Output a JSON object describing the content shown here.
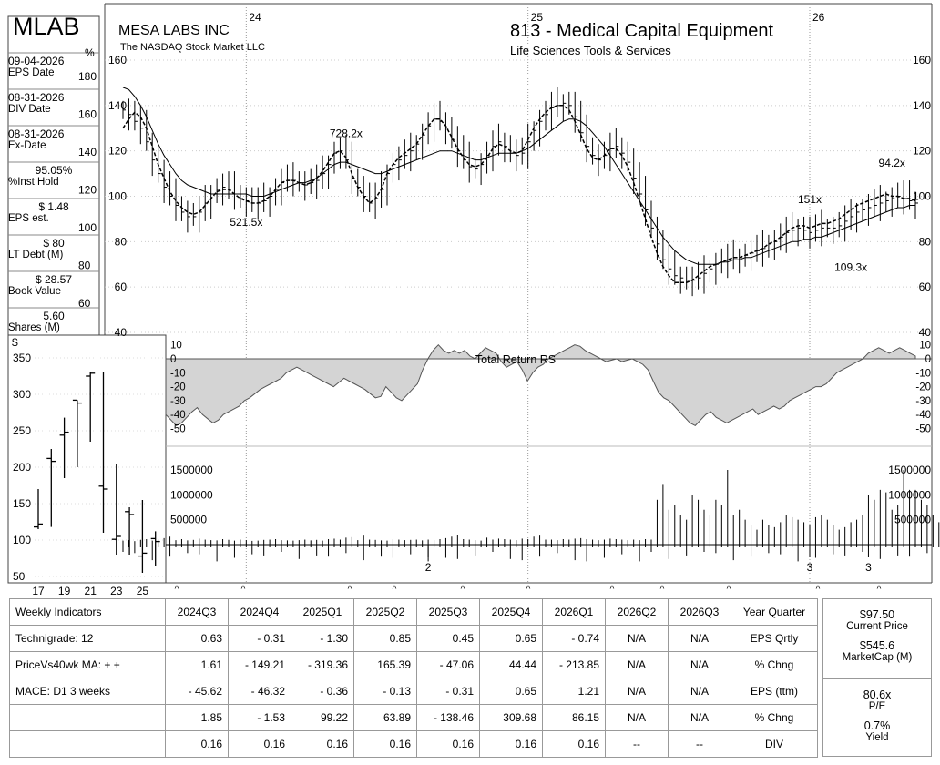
{
  "header": {
    "ticker": "MLAB",
    "company": "MESA LABS INC",
    "exchange": "The NASDAQ Stock Market LLC",
    "group": "813 - Medical Capital Equipment",
    "industry": "Life Sciences Tools & Services"
  },
  "side_stats": [
    {
      "value": "09-04-2026",
      "label": "EPS Date"
    },
    {
      "value": "08-31-2026",
      "label": "DIV Date"
    },
    {
      "value": "08-31-2026",
      "label": "Ex-Date"
    },
    {
      "value": "95.05%",
      "label": "%Inst Hold"
    },
    {
      "value": "$ 1.48",
      "label": "EPS est."
    },
    {
      "value": "$ 80",
      "label": "LT Debt (M)"
    },
    {
      "value": "$ 28.57",
      "label": "Book Value"
    },
    {
      "value": "5.60",
      "label": "Shares (M)"
    }
  ],
  "chart_data": [
    {
      "type": "line",
      "name": "weekly-price",
      "x_year_labels": [
        "24",
        "25",
        "26"
      ],
      "right_axis_ticks": [
        "160",
        "140",
        "120",
        "100",
        "80",
        "60",
        "40"
      ],
      "left_axis_label": "%",
      "left_axis_ticks": [
        "180",
        "160",
        "140",
        "120",
        "100",
        "80",
        "60"
      ],
      "ylim": [
        40,
        160
      ],
      "price_closes": [
        138,
        136,
        133,
        130,
        124,
        116,
        110,
        104,
        100,
        96,
        93,
        91,
        91,
        93,
        97,
        101,
        103,
        104,
        103,
        101,
        99,
        98,
        97,
        97,
        98,
        100,
        103,
        106,
        107,
        107,
        106,
        105,
        106,
        107,
        110,
        114,
        119,
        120,
        116,
        108,
        104,
        100,
        97,
        99,
        103,
        110,
        114,
        116,
        118,
        120,
        123,
        127,
        131,
        134,
        133,
        130,
        125,
        120,
        116,
        113,
        112,
        114,
        118,
        122,
        124,
        122,
        119,
        118,
        119,
        124,
        129,
        133,
        136,
        139,
        140,
        141,
        140,
        135,
        128,
        122,
        118,
        116,
        118,
        121,
        122,
        119,
        115,
        108,
        101,
        94,
        86,
        79,
        72,
        68,
        65,
        64,
        63,
        63,
        64,
        66,
        68,
        70,
        71,
        72,
        73,
        73,
        74,
        75,
        76,
        77,
        79,
        80,
        82,
        84,
        85,
        86,
        85,
        84,
        85,
        86,
        86,
        86,
        87,
        89,
        91,
        93,
        94,
        95,
        96,
        97,
        98,
        99,
        100,
        99,
        98,
        97
      ],
      "ma10": [
        130,
        134,
        137,
        135,
        130,
        122,
        114,
        108,
        102,
        98,
        95,
        93,
        92,
        93,
        96,
        99,
        102,
        103,
        103,
        101,
        99,
        98,
        97,
        97,
        98,
        100,
        103,
        106,
        107,
        107,
        106,
        105,
        106,
        108,
        111,
        115,
        119,
        120,
        117,
        110,
        104,
        100,
        97,
        99,
        103,
        110,
        114,
        117,
        119,
        121,
        123,
        127,
        131,
        134,
        134,
        131,
        126,
        121,
        117,
        114,
        113,
        114,
        117,
        121,
        123,
        122,
        120,
        119,
        120,
        125,
        130,
        134,
        137,
        139,
        140,
        140,
        138,
        133,
        127,
        121,
        117,
        116,
        118,
        121,
        121,
        118,
        113,
        106,
        98,
        90,
        82,
        75,
        69,
        65,
        62,
        62,
        62,
        63,
        65,
        67,
        69,
        70,
        71,
        72,
        73,
        73,
        74,
        75,
        76,
        77,
        79,
        80,
        82,
        84,
        86,
        87,
        87,
        86,
        87,
        88,
        88,
        89,
        90,
        92,
        94,
        96,
        97,
        98,
        99,
        100,
        101,
        100,
        100,
        99,
        99,
        98
      ],
      "ma40": [
        148,
        147,
        144,
        140,
        135,
        129,
        123,
        118,
        114,
        110,
        107,
        105,
        104,
        103,
        102,
        101,
        101,
        101,
        101,
        101,
        101,
        101,
        100,
        100,
        100,
        101,
        102,
        103,
        104,
        105,
        106,
        106,
        107,
        108,
        110,
        112,
        114,
        115,
        115,
        114,
        113,
        112,
        111,
        110,
        110,
        111,
        112,
        113,
        114,
        115,
        116,
        117,
        118,
        119,
        120,
        120,
        120,
        119,
        118,
        117,
        116,
        116,
        117,
        118,
        119,
        119,
        119,
        119,
        120,
        121,
        123,
        125,
        127,
        129,
        131,
        133,
        134,
        134,
        133,
        131,
        128,
        125,
        122,
        118,
        114,
        110,
        106,
        102,
        98,
        94,
        90,
        86,
        82,
        79,
        76,
        74,
        72,
        71,
        70,
        70,
        70,
        70,
        71,
        71,
        72,
        72,
        73,
        73,
        74,
        75,
        76,
        77,
        78,
        79,
        80,
        80,
        81,
        81,
        82,
        82,
        83,
        84,
        85,
        86,
        87,
        88,
        89,
        90,
        91,
        92,
        93,
        94,
        95,
        95,
        96,
        96
      ],
      "annotations": [
        {
          "text": "728.2x",
          "x_index": 38,
          "y": 126
        },
        {
          "text": "521.5x",
          "x_index": 21,
          "y": 87
        },
        {
          "text": "151x",
          "x_index": 117,
          "y": 97
        },
        {
          "text": "109.3x",
          "x_index": 124,
          "y": 67
        },
        {
          "text": "94.2x",
          "x_index": 131,
          "y": 113
        }
      ]
    },
    {
      "type": "area",
      "name": "total-return-rs",
      "title": "Total Return RS",
      "y_ticks": [
        "10",
        "0",
        "-10",
        "-20",
        "-30",
        "-40",
        "-50"
      ],
      "ylim": [
        -55,
        12
      ],
      "values": [
        -40,
        -44,
        -48,
        -46,
        -42,
        -38,
        -35,
        -40,
        -43,
        -46,
        -44,
        -40,
        -38,
        -36,
        -34,
        -30,
        -28,
        -25,
        -22,
        -20,
        -18,
        -16,
        -14,
        -10,
        -8,
        -6,
        -8,
        -10,
        -12,
        -14,
        -16,
        -18,
        -20,
        -17,
        -14,
        -16,
        -18,
        -20,
        -22,
        -25,
        -28,
        -27,
        -20,
        -24,
        -28,
        -30,
        -26,
        -22,
        -18,
        -8,
        0,
        6,
        10,
        6,
        4,
        6,
        4,
        6,
        2,
        0,
        4,
        8,
        6,
        4,
        -2,
        -6,
        -4,
        -2,
        -8,
        -16,
        -10,
        -6,
        -4,
        0,
        2,
        4,
        6,
        8,
        10,
        9,
        6,
        4,
        2,
        0,
        -2,
        -1,
        0,
        -2,
        -1,
        0,
        -2,
        -4,
        -8,
        -16,
        -24,
        -28,
        -30,
        -34,
        -38,
        -42,
        -46,
        -48,
        -44,
        -40,
        -38,
        -42,
        -44,
        -46,
        -44,
        -42,
        -40,
        -38,
        -36,
        -40,
        -38,
        -36,
        -34,
        -36,
        -34,
        -30,
        -28,
        -26,
        -24,
        -22,
        -20,
        -20,
        -18,
        -14,
        -10,
        -8,
        -6,
        -4,
        -2,
        0,
        4,
        6,
        8,
        6,
        4,
        6,
        8,
        6,
        4,
        2
      ]
    },
    {
      "type": "bar",
      "name": "weekly-volume",
      "y_ticks": [
        "1500000",
        "1000000",
        "500000"
      ],
      "ylim": [
        0,
        1800000
      ],
      "values": [
        80000,
        90000,
        70000,
        95000,
        110000,
        80000,
        75000,
        130000,
        160000,
        90000,
        110000,
        85000,
        95000,
        120000,
        100000,
        90000,
        85000,
        110000,
        95000,
        80000,
        100000,
        90000,
        75000,
        80000,
        95000,
        100000,
        110000,
        90000,
        85000,
        80000,
        90000,
        100000,
        85000,
        95000,
        80000,
        110000,
        120000,
        100000,
        140000,
        150000,
        90000,
        180000,
        100000,
        95000,
        85000,
        80000,
        110000,
        100000,
        90000,
        95000,
        100000,
        85000,
        100000,
        90000,
        110000,
        130000,
        160000,
        190000,
        110000,
        100000,
        90000,
        80000,
        140000,
        100000,
        120000,
        110000,
        100000,
        90000,
        120000,
        110000,
        160000,
        180000,
        100000,
        100000,
        90000,
        110000,
        100000,
        120000,
        130000,
        110000,
        100000,
        90000,
        100000,
        120000,
        110000,
        100000,
        90000,
        100000,
        90000,
        110000,
        100000,
        900000,
        1200000,
        700000,
        800000,
        600000,
        500000,
        1000000,
        900000,
        700000,
        600000,
        900000,
        800000,
        1500000,
        600000,
        700000,
        500000,
        400000,
        300000,
        500000,
        400000,
        350000,
        450000,
        600000,
        550000,
        500000,
        450000,
        400000,
        550000,
        600000,
        500000,
        400000,
        300000,
        350000,
        450000,
        500000,
        600000,
        1000000,
        900000,
        1100000,
        1050000,
        700000,
        800000,
        1500000,
        1100000,
        1100000,
        900000,
        800000,
        600000,
        450000
      ],
      "marker_labels": [
        {
          "text": "2",
          "x_index": 52
        },
        {
          "text": "3",
          "x_index": 117
        },
        {
          "text": "3",
          "x_index": 127
        }
      ]
    },
    {
      "type": "bar",
      "name": "annual-range",
      "y_axis_label": "$",
      "y_ticks": [
        "350",
        "300",
        "250",
        "200",
        "150",
        "100",
        "50"
      ],
      "ylim": [
        45,
        365
      ],
      "categories": [
        "17",
        "18",
        "19",
        "20",
        "21",
        "22",
        "23",
        "24",
        "25",
        "26"
      ],
      "x_tick_labels": [
        "17",
        "19",
        "21",
        "23",
        "25"
      ],
      "bars": [
        {
          "year": "17",
          "high": 170,
          "low": 115,
          "close": 122
        },
        {
          "year": "18",
          "high": 225,
          "low": 118,
          "close": 208
        },
        {
          "year": "19",
          "high": 268,
          "low": 185,
          "close": 248
        },
        {
          "year": "20",
          "high": 292,
          "low": 200,
          "close": 288
        },
        {
          "year": "21",
          "high": 330,
          "low": 235,
          "close": 329
        },
        {
          "year": "22",
          "high": 330,
          "low": 110,
          "close": 170
        },
        {
          "year": "23",
          "high": 205,
          "low": 80,
          "close": 105
        },
        {
          "year": "24",
          "high": 145,
          "low": 80,
          "close": 135
        },
        {
          "year": "25",
          "high": 155,
          "low": 55,
          "close": 82
        },
        {
          "year": "26",
          "high": 112,
          "low": 65,
          "close": 98
        }
      ]
    }
  ],
  "caret_row": "^",
  "table": {
    "rows": [
      [
        "Weekly Indicators",
        "2024Q3",
        "2024Q4",
        "2025Q1",
        "2025Q2",
        "2025Q3",
        "2025Q4",
        "2026Q1",
        "2026Q2",
        "2026Q3",
        "Year Quarter"
      ],
      [
        "Technigrade: 12",
        "0.63",
        "- 0.31",
        "- 1.30",
        "0.85",
        "0.45",
        "0.65",
        "- 0.74",
        "N/A",
        "N/A",
        "EPS Qrtly"
      ],
      [
        "PriceVs40wk MA:  + +",
        "1.61",
        "- 149.21",
        "- 319.36",
        "165.39",
        "- 47.06",
        "44.44",
        "- 213.85",
        "N/A",
        "N/A",
        "% Chng"
      ],
      [
        "MACE: D1  3 weeks",
        "- 45.62",
        "- 46.32",
        "- 0.36",
        "- 0.13",
        "- 0.31",
        "0.65",
        "1.21",
        "N/A",
        "N/A",
        "EPS (ttm)"
      ],
      [
        "",
        "1.85",
        "- 1.53",
        "99.22",
        "63.89",
        "- 138.46",
        "309.68",
        "86.15",
        "N/A",
        "N/A",
        "% Chng"
      ],
      [
        "",
        "0.16",
        "0.16",
        "0.16",
        "0.16",
        "0.16",
        "0.16",
        "0.16",
        "--",
        "--",
        "DIV"
      ]
    ]
  },
  "right_stats": {
    "current_price": "$97.50",
    "current_price_label": "Current Price",
    "market_cap": "$545.6",
    "market_cap_label": "MarketCap (M)",
    "pe": "80.6x",
    "pe_label": "P/E",
    "yield": "0.7%",
    "yield_label": "Yield"
  }
}
